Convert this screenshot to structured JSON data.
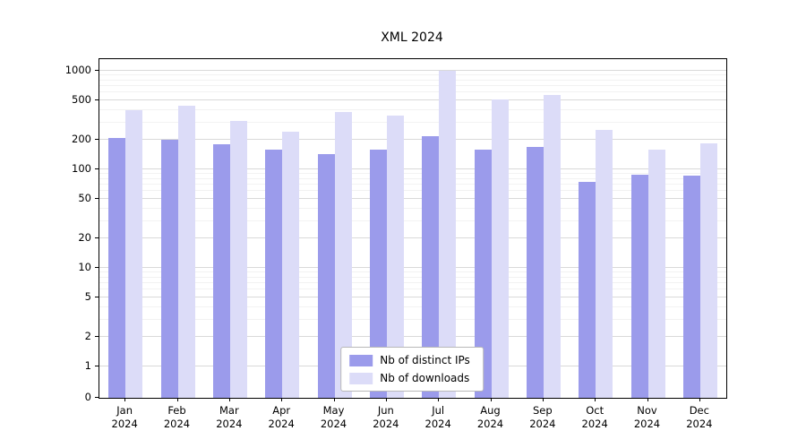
{
  "chart_data": {
    "type": "bar",
    "title": "XML 2024",
    "categories": [
      "Jan\n2024",
      "Feb\n2024",
      "Mar\n2024",
      "Apr\n2024",
      "May\n2024",
      "Jun\n2024",
      "Jul\n2024",
      "Aug\n2024",
      "Sep\n2024",
      "Oct\n2024",
      "Nov\n2024",
      "Dec\n2024"
    ],
    "series": [
      {
        "name": "Nb of distinct IPs",
        "color": "#9b9beb",
        "values": [
          210,
          200,
          178,
          158,
          142,
          158,
          218,
          157,
          168,
          75,
          88,
          86
        ]
      },
      {
        "name": "Nb of downloads",
        "color": "#dcdcf8",
        "values": [
          400,
          440,
          310,
          240,
          380,
          350,
          1000,
          510,
          570,
          250,
          160,
          185
        ]
      }
    ],
    "yticks": [
      0,
      1,
      2,
      5,
      10,
      20,
      50,
      100,
      200,
      500,
      1000
    ],
    "scale": "symlog",
    "ylim": [
      0,
      1000
    ],
    "grid": true,
    "legend_position": "lower center"
  }
}
